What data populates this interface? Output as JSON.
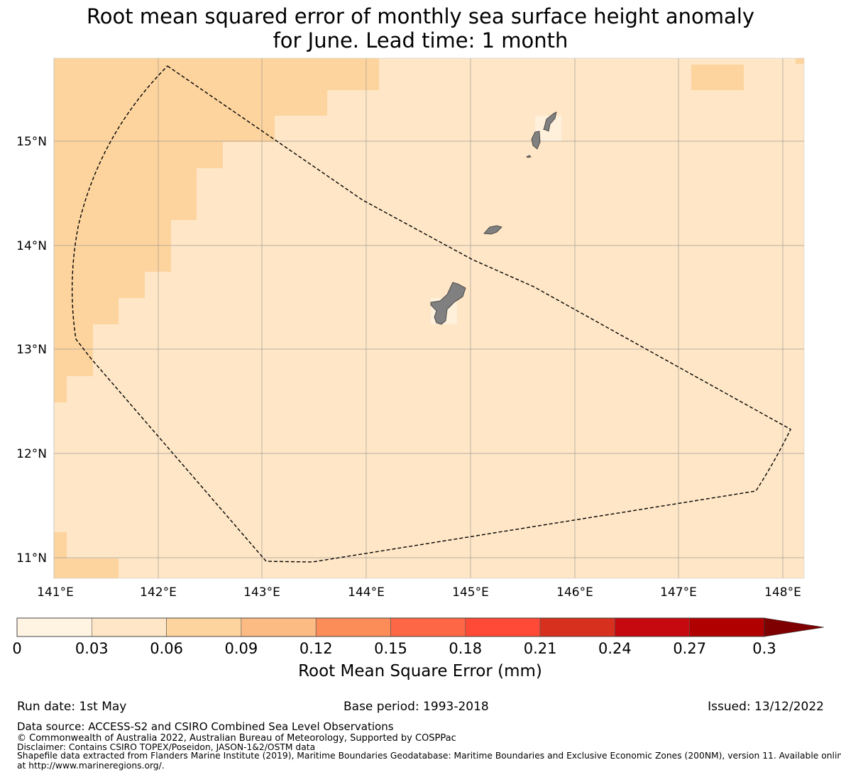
{
  "title": {
    "line1": "Root mean squared error of monthly sea surface height anomaly",
    "line2": "for June. Lead time: 1 month"
  },
  "map": {
    "lat_ticks": [
      "15°N",
      "14°N",
      "13°N",
      "12°N",
      "11°N"
    ],
    "lon_ticks": [
      "141°E",
      "142°E",
      "143°E",
      "144°E",
      "145°E",
      "146°E",
      "147°E",
      "148°E"
    ],
    "colors": {
      "lightest": "#fff0dc",
      "light": "#fee6c6",
      "medium": "#fdd49e",
      "land": "#808080",
      "eez_line": "#000000",
      "grid": "#8c8c8c"
    }
  },
  "colorbar": {
    "ticks": [
      "0",
      "0.03",
      "0.06",
      "0.09",
      "0.12",
      "0.15",
      "0.18",
      "0.21",
      "0.24",
      "0.27",
      "0.3"
    ],
    "colors": [
      "#fff3e2",
      "#fee6c6",
      "#fdd49e",
      "#fdbb84",
      "#fc8d59",
      "#fe6746",
      "#fe4a36",
      "#d7301f",
      "#c6090f",
      "#b00000",
      "#7f0000"
    ],
    "label": "Root Mean Square Error (mm)"
  },
  "footer": {
    "run_date": "Run date: 1st May",
    "base_period": "Base period: 1993-2018",
    "issued": "Issued: 13/12/2022",
    "data_source": "Data source: ACCESS-S2 and CSIRO Combined Sea Level Observations",
    "copyright": "© Commonwealth of Australia 2022, Australian Bureau of Meteorology, Supported by COSPPac",
    "disclaimer": "Disclaimer: Contains CSIRO TOPEX/Poseidon, JASON-1&2/OSTM data",
    "shapefile_1": "Shapefile data extracted from Flanders Marine Institute (2019), Maritime Boundaries Geodatabase: Maritime Boundaries and Exclusive Economic Zones (200NM), version 11. Available online",
    "shapefile_2": "at http://www.marineregions.org/."
  }
}
